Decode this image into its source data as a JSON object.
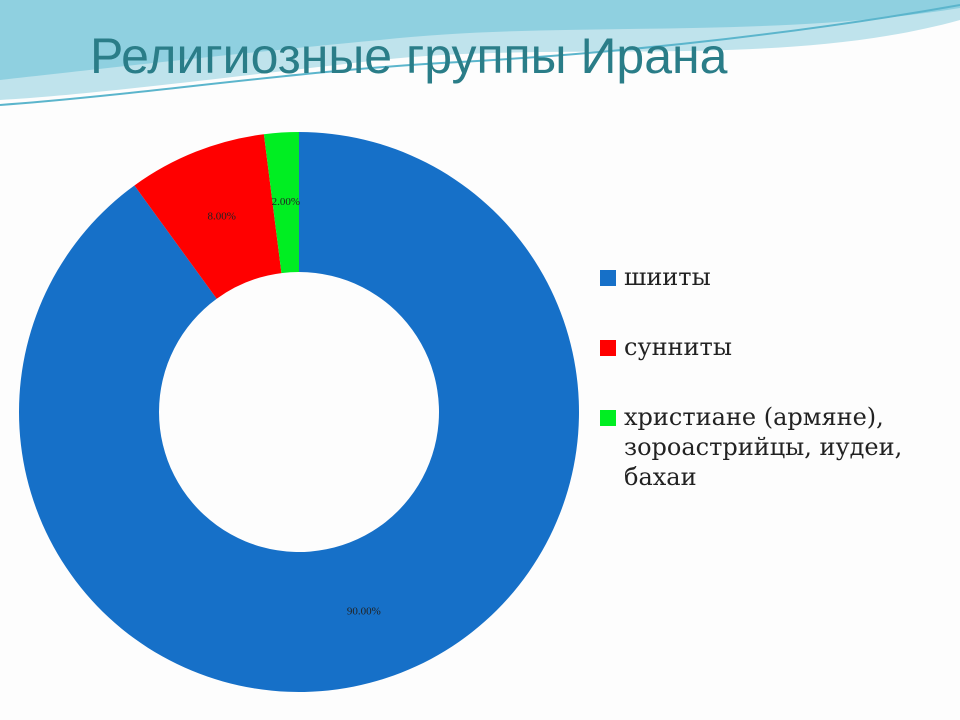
{
  "chart_data": {
    "type": "donut",
    "title": "Религиозные группы Ирана",
    "categories": [
      "шииты",
      "сунниты",
      "христиане (армяне), зороастрийцы, иудеи, бахаи"
    ],
    "values": [
      90,
      8,
      2
    ],
    "value_labels": [
      "90.00%",
      "8.00%",
      "2.00%"
    ],
    "colors": [
      "#1670c8",
      "#ff0000",
      "#00ee22"
    ],
    "legend": "right"
  }
}
